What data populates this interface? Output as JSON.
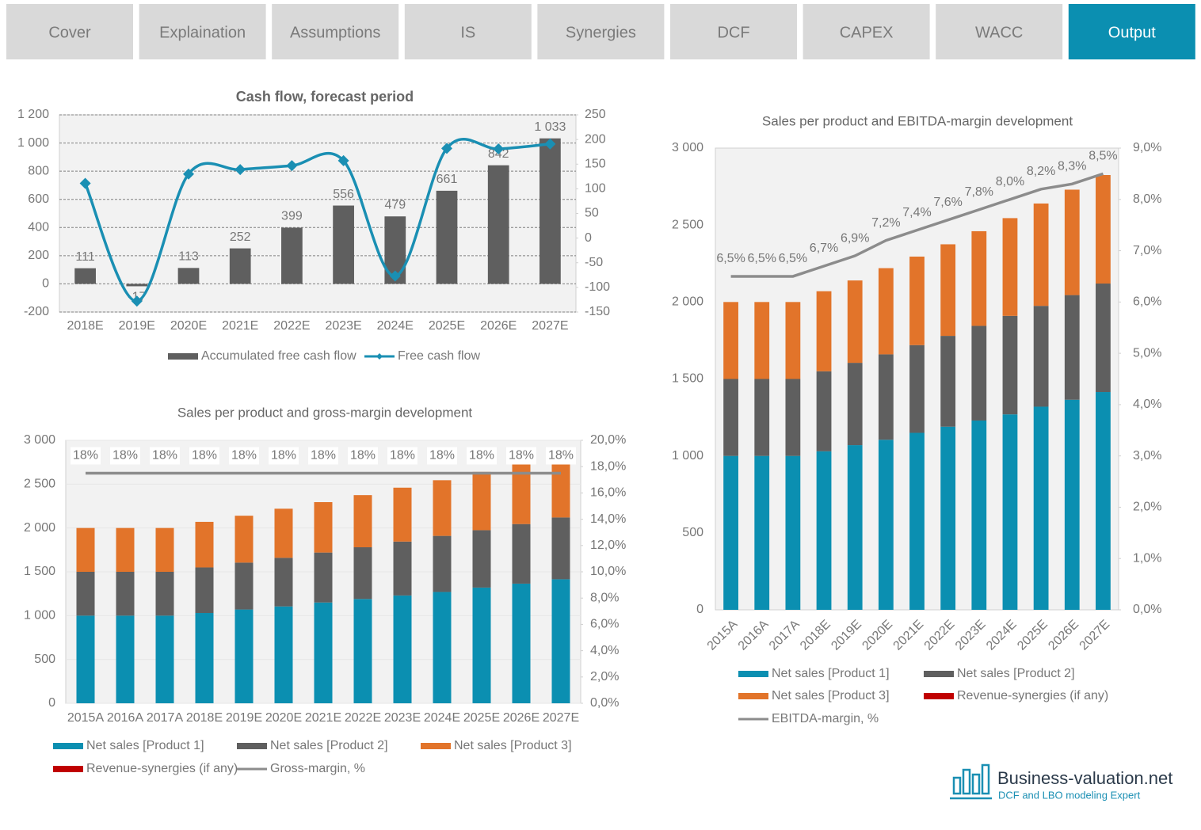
{
  "tabs": [
    "Cover",
    "Explaination",
    "Assumptions",
    "IS",
    "Synergies",
    "DCF",
    "CAPEX",
    "WACC",
    "Output"
  ],
  "active_tab": 8,
  "chart_data": [
    {
      "type": "bar",
      "title": "Cash flow, forecast period",
      "categories": [
        "2018E",
        "2019E",
        "2020E",
        "2021E",
        "2022E",
        "2023E",
        "2024E",
        "2025E",
        "2026E",
        "2027E"
      ],
      "series": [
        {
          "name": "Accumulated free cash flow",
          "color": "#5f5f5f",
          "values": [
            111,
            -17,
            113,
            252,
            399,
            556,
            479,
            661,
            842,
            1033
          ],
          "value_labels": [
            "111",
            "-17",
            "113",
            "252",
            "399",
            "556",
            "479",
            "661",
            "842",
            "1 033"
          ]
        },
        {
          "name": "Free cash flow",
          "color": "#1a8fb3",
          "axis": "y2",
          "smooth": true,
          "marker": "diamond",
          "values": [
            111,
            -128,
            130,
            139,
            147,
            157,
            -77,
            182,
            181,
            191
          ]
        }
      ],
      "ylim": [
        -200,
        1200
      ],
      "yticks": [
        -200,
        0,
        200,
        400,
        600,
        800,
        {
          "value": 1000,
          "label": "1 000"
        },
        {
          "value": 1200,
          "label": "1 200"
        }
      ],
      "y2lim": [
        -150,
        250
      ],
      "y2ticks": [
        -150,
        -100,
        -50,
        0,
        50,
        100,
        150,
        200,
        250
      ],
      "grid": true,
      "legend": "bottom"
    },
    {
      "type": "stacked_bar",
      "title": "Sales per product and gross-margin development",
      "categories": [
        "2015A",
        "2016A",
        "2017A",
        "2018E",
        "2019E",
        "2020E",
        "2021E",
        "2022E",
        "2023E",
        "2024E",
        "2025E",
        "2026E",
        "2027E"
      ],
      "series": [
        {
          "name": "Net sales [Product 1]",
          "color": "#0b8fb1",
          "values": [
            1000,
            1000,
            1000,
            1030,
            1070,
            1105,
            1150,
            1190,
            1230,
            1270,
            1320,
            1365,
            1415
          ]
        },
        {
          "name": "Net sales [Product 2]",
          "color": "#5f5f5f",
          "values": [
            500,
            500,
            500,
            520,
            535,
            555,
            570,
            590,
            615,
            640,
            655,
            680,
            705
          ]
        },
        {
          "name": "Net sales [Product 3]",
          "color": "#e2742a",
          "values": [
            500,
            500,
            500,
            520,
            535,
            560,
            575,
            595,
            615,
            635,
            665,
            685,
            705
          ]
        },
        {
          "name": "Revenue-synergies (if any)",
          "color": "#c00000",
          "values": [
            0,
            0,
            0,
            0,
            0,
            0,
            0,
            0,
            0,
            0,
            0,
            0,
            0
          ]
        },
        {
          "name": "Gross-margin, %",
          "color": "#8c8c8c",
          "axis": "y2",
          "label_background": "#ffffff",
          "values": [
            17.5,
            17.5,
            17.5,
            17.5,
            17.5,
            17.5,
            17.5,
            17.5,
            17.5,
            17.5,
            17.5,
            17.5,
            17.5
          ],
          "value_labels": [
            "18%",
            "18%",
            "18%",
            "18%",
            "18%",
            "18%",
            "18%",
            "18%",
            "18%",
            "18%",
            "18%",
            "18%",
            "18%"
          ]
        }
      ],
      "ylim": [
        0,
        3000
      ],
      "yticks": [
        0,
        500,
        {
          "value": 1000,
          "label": "1 000"
        },
        {
          "value": 1500,
          "label": "1 500"
        },
        {
          "value": 2000,
          "label": "2 000"
        },
        {
          "value": 2500,
          "label": "2 500"
        },
        {
          "value": 3000,
          "label": "3 000"
        }
      ],
      "y2lim": [
        0,
        20
      ],
      "y2ticks": [
        {
          "value": 0,
          "label": "0,0%"
        },
        {
          "value": 2,
          "label": "2,0%"
        },
        {
          "value": 4,
          "label": "4,0%"
        },
        {
          "value": 6,
          "label": "6,0%"
        },
        {
          "value": 8,
          "label": "8,0%"
        },
        {
          "value": 10,
          "label": "10,0%"
        },
        {
          "value": 12,
          "label": "12,0%"
        },
        {
          "value": 14,
          "label": "14,0%"
        },
        {
          "value": 16,
          "label": "16,0%"
        },
        {
          "value": 18,
          "label": "18,0%"
        },
        {
          "value": 20,
          "label": "20,0%"
        }
      ],
      "grid": true,
      "legend": "bottom"
    },
    {
      "type": "stacked_bar",
      "title": "Sales per product and EBITDA-margin development",
      "categories": [
        "2015A",
        "2016A",
        "2017A",
        "2018E",
        "2019E",
        "2020E",
        "2021E",
        "2022E",
        "2023E",
        "2024E",
        "2025E",
        "2026E",
        "2027E"
      ],
      "series": [
        {
          "name": "Net sales [Product 1]",
          "color": "#0b8fb1",
          "values": [
            1000,
            1000,
            1000,
            1030,
            1070,
            1105,
            1150,
            1190,
            1230,
            1270,
            1320,
            1365,
            1415
          ]
        },
        {
          "name": "Net sales [Product 2]",
          "color": "#5f5f5f",
          "values": [
            500,
            500,
            500,
            520,
            535,
            555,
            570,
            590,
            615,
            640,
            655,
            680,
            705
          ]
        },
        {
          "name": "Net sales [Product 3]",
          "color": "#e2742a",
          "values": [
            500,
            500,
            500,
            520,
            535,
            560,
            575,
            595,
            615,
            635,
            665,
            685,
            705
          ]
        },
        {
          "name": "Revenue-synergies (if any)",
          "color": "#c00000",
          "values": [
            0,
            0,
            0,
            0,
            0,
            0,
            0,
            0,
            0,
            0,
            0,
            0,
            0
          ]
        },
        {
          "name": "EBITDA-margin, %",
          "color": "#8c8c8c",
          "axis": "y2",
          "values": [
            6.5,
            6.5,
            6.5,
            6.7,
            6.9,
            7.2,
            7.4,
            7.6,
            7.8,
            8.0,
            8.2,
            8.3,
            8.5
          ],
          "value_labels": [
            "6,5%",
            "6,5%",
            "6,5%",
            "6,7%",
            "6,9%",
            "7,2%",
            "7,4%",
            "7,6%",
            "7,8%",
            "8,0%",
            "8,2%",
            "8,3%",
            "8,5%"
          ]
        }
      ],
      "ylim": [
        0,
        3000
      ],
      "yticks": [
        0,
        500,
        {
          "value": 1000,
          "label": "1 000"
        },
        {
          "value": 1500,
          "label": "1 500"
        },
        {
          "value": 2000,
          "label": "2 000"
        },
        {
          "value": 2500,
          "label": "2 500"
        },
        {
          "value": 3000,
          "label": "3 000"
        }
      ],
      "y2lim": [
        0,
        9
      ],
      "y2ticks": [
        {
          "value": 0,
          "label": "0,0%"
        },
        {
          "value": 1,
          "label": "1,0%"
        },
        {
          "value": 2,
          "label": "2,0%"
        },
        {
          "value": 3,
          "label": "3,0%"
        },
        {
          "value": 4,
          "label": "4,0%"
        },
        {
          "value": 5,
          "label": "5,0%"
        },
        {
          "value": 6,
          "label": "6,0%"
        },
        {
          "value": 7,
          "label": "7,0%"
        },
        {
          "value": 8,
          "label": "8,0%"
        },
        {
          "value": 9,
          "label": "9,0%"
        }
      ],
      "grid": false,
      "legend": "bottom"
    }
  ],
  "logo": {
    "name": "Business-valuation.net",
    "tagline": "DCF and LBO modeling Expert"
  }
}
